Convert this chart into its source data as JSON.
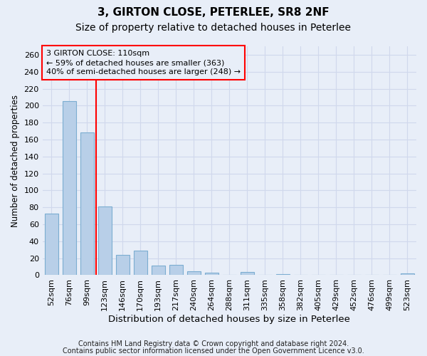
{
  "title1": "3, GIRTON CLOSE, PETERLEE, SR8 2NF",
  "title2": "Size of property relative to detached houses in Peterlee",
  "xlabel": "Distribution of detached houses by size in Peterlee",
  "ylabel": "Number of detached properties",
  "categories": [
    "52sqm",
    "76sqm",
    "99sqm",
    "123sqm",
    "146sqm",
    "170sqm",
    "193sqm",
    "217sqm",
    "240sqm",
    "264sqm",
    "288sqm",
    "311sqm",
    "335sqm",
    "358sqm",
    "382sqm",
    "405sqm",
    "429sqm",
    "452sqm",
    "476sqm",
    "499sqm",
    "523sqm"
  ],
  "values": [
    73,
    205,
    168,
    81,
    24,
    29,
    11,
    12,
    5,
    3,
    0,
    4,
    0,
    1,
    0,
    0,
    0,
    0,
    0,
    0,
    2
  ],
  "bar_color": "#b8cfe8",
  "bar_edge_color": "#7badd1",
  "redline_index": 2,
  "ylim": [
    0,
    270
  ],
  "yticks": [
    0,
    20,
    40,
    60,
    80,
    100,
    120,
    140,
    160,
    180,
    200,
    220,
    240,
    260
  ],
  "annotation_title": "3 GIRTON CLOSE: 110sqm",
  "annotation_line1": "← 59% of detached houses are smaller (363)",
  "annotation_line2": "40% of semi-detached houses are larger (248) →",
  "footnote1": "Contains HM Land Registry data © Crown copyright and database right 2024.",
  "footnote2": "Contains public sector information licensed under the Open Government Licence v3.0.",
  "background_color": "#e8eef8",
  "grid_color": "#d0d8ec",
  "title1_fontsize": 11,
  "title2_fontsize": 10,
  "xlabel_fontsize": 9.5,
  "ylabel_fontsize": 8.5,
  "tick_fontsize": 8,
  "footnote_fontsize": 7.0,
  "bar_width": 0.75
}
